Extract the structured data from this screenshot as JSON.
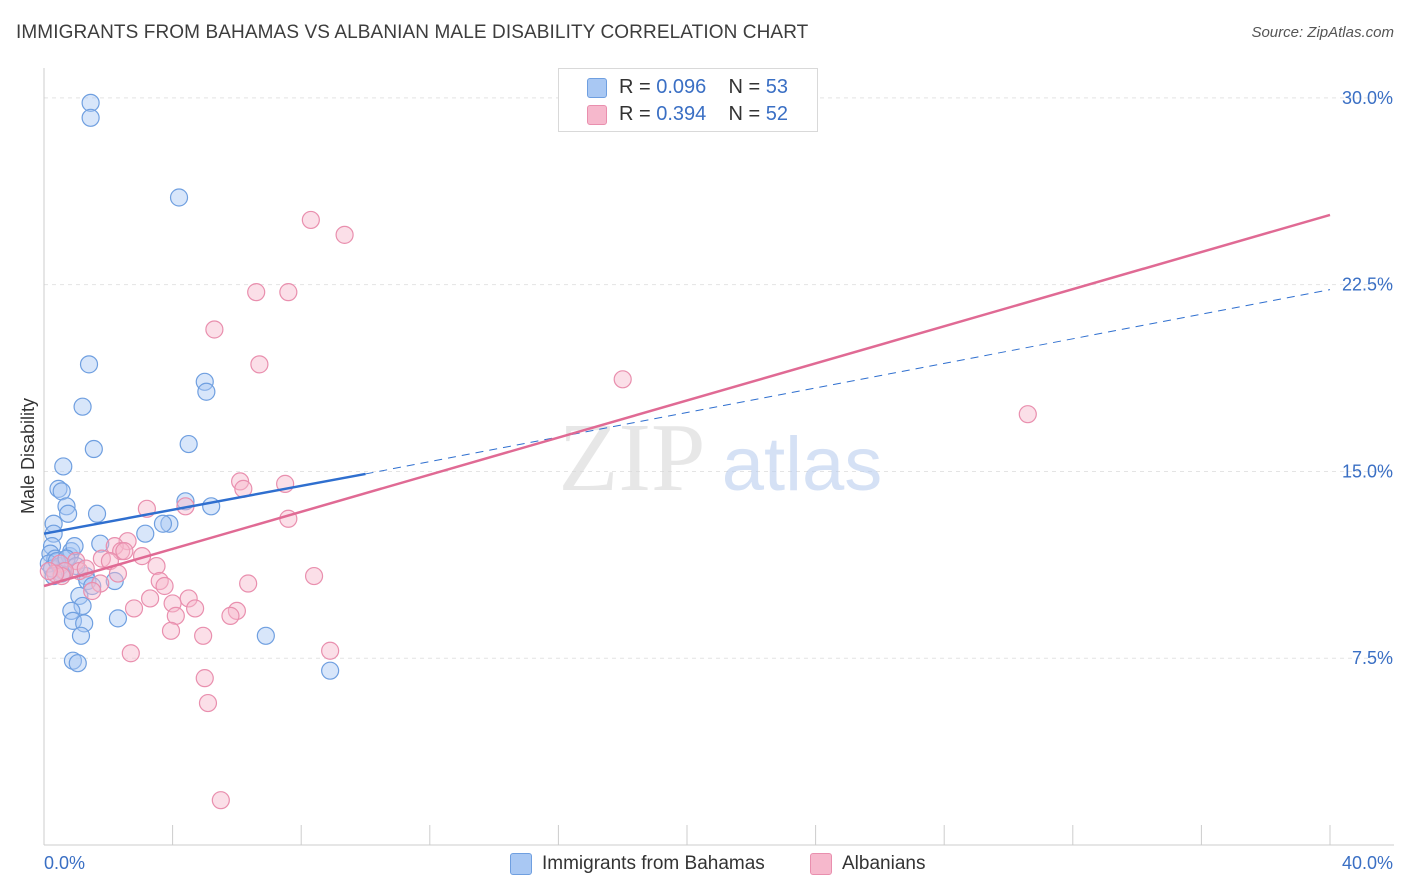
{
  "header": {
    "title": "IMMIGRANTS FROM BAHAMAS VS ALBANIAN MALE DISABILITY CORRELATION CHART",
    "source": "Source: ZipAtlas.com"
  },
  "watermark": {
    "zip": "ZIP",
    "atlas": "atlas"
  },
  "legend": {
    "series1": {
      "r_label": "R = ",
      "r_value": "0.096",
      "n_label": "N = ",
      "n_value": "53"
    },
    "series2": {
      "r_label": "R = ",
      "r_value": "0.394",
      "n_label": "N = ",
      "n_value": "52"
    }
  },
  "colors": {
    "blue_fill": "#a9c8f3",
    "blue_stroke": "#6f9fe0",
    "blue_line": "#2f6fcf",
    "pink_fill": "#f6b8cc",
    "pink_stroke": "#e98fae",
    "pink_line": "#e06a94",
    "axis_text": "#3a6fc4",
    "grid": "#e4e4e4"
  },
  "chart_data": {
    "type": "scatter",
    "title": "IMMIGRANTS FROM BAHAMAS VS ALBANIAN MALE DISABILITY CORRELATION CHART",
    "xlabel": "",
    "ylabel": "Male Disability",
    "xlim": [
      0,
      40
    ],
    "ylim": [
      0,
      31.2
    ],
    "x_ticks": [
      "0.0%",
      "40.0%"
    ],
    "y_ticks": [
      {
        "value": 7.5,
        "label": "7.5%"
      },
      {
        "value": 15.0,
        "label": "15.0%"
      },
      {
        "value": 22.5,
        "label": "22.5%"
      },
      {
        "value": 30.0,
        "label": "30.0%"
      }
    ],
    "series": [
      {
        "name": "Immigrants from Bahamas",
        "color": "blue",
        "points": [
          [
            1.45,
            29.8
          ],
          [
            1.45,
            29.2
          ],
          [
            4.2,
            26.0
          ],
          [
            1.4,
            19.3
          ],
          [
            5.0,
            18.6
          ],
          [
            5.05,
            18.2
          ],
          [
            1.2,
            17.6
          ],
          [
            1.55,
            15.9
          ],
          [
            4.5,
            16.1
          ],
          [
            0.6,
            15.2
          ],
          [
            0.45,
            14.3
          ],
          [
            0.55,
            14.2
          ],
          [
            0.7,
            13.6
          ],
          [
            0.75,
            13.3
          ],
          [
            1.65,
            13.3
          ],
          [
            4.4,
            13.8
          ],
          [
            5.2,
            13.6
          ],
          [
            3.9,
            12.9
          ],
          [
            3.7,
            12.9
          ],
          [
            3.15,
            12.5
          ],
          [
            0.3,
            12.9
          ],
          [
            0.3,
            12.5
          ],
          [
            0.25,
            12.0
          ],
          [
            0.2,
            11.7
          ],
          [
            0.35,
            11.5
          ],
          [
            0.15,
            11.3
          ],
          [
            0.25,
            11.1
          ],
          [
            0.5,
            11.2
          ],
          [
            0.8,
            11.6
          ],
          [
            0.85,
            11.8
          ],
          [
            0.95,
            12.0
          ],
          [
            1.75,
            12.1
          ],
          [
            0.6,
            11.0
          ],
          [
            1.3,
            10.8
          ],
          [
            1.35,
            10.6
          ],
          [
            1.5,
            10.4
          ],
          [
            1.1,
            10.0
          ],
          [
            1.2,
            9.6
          ],
          [
            0.85,
            9.4
          ],
          [
            0.9,
            9.0
          ],
          [
            1.25,
            8.9
          ],
          [
            2.3,
            9.1
          ],
          [
            1.15,
            8.4
          ],
          [
            0.9,
            7.4
          ],
          [
            1.05,
            7.3
          ],
          [
            6.9,
            8.4
          ],
          [
            8.9,
            7.0
          ],
          [
            2.2,
            10.6
          ],
          [
            0.55,
            10.9
          ],
          [
            0.4,
            11.4
          ],
          [
            0.7,
            11.5
          ],
          [
            1.0,
            11.2
          ],
          [
            0.3,
            10.8
          ]
        ]
      },
      {
        "name": "Albanians",
        "color": "pink",
        "points": [
          [
            8.3,
            25.1
          ],
          [
            9.35,
            24.5
          ],
          [
            6.6,
            22.2
          ],
          [
            7.6,
            22.2
          ],
          [
            5.3,
            20.7
          ],
          [
            6.7,
            19.3
          ],
          [
            18.0,
            18.7
          ],
          [
            30.6,
            17.3
          ],
          [
            6.1,
            14.6
          ],
          [
            7.5,
            14.5
          ],
          [
            6.2,
            14.3
          ],
          [
            3.2,
            13.5
          ],
          [
            4.4,
            13.6
          ],
          [
            7.6,
            13.1
          ],
          [
            2.6,
            12.2
          ],
          [
            2.2,
            12.0
          ],
          [
            2.4,
            11.8
          ],
          [
            2.5,
            11.8
          ],
          [
            3.05,
            11.6
          ],
          [
            1.8,
            11.5
          ],
          [
            2.05,
            11.4
          ],
          [
            1.0,
            11.4
          ],
          [
            1.1,
            11.0
          ],
          [
            0.5,
            11.3
          ],
          [
            0.65,
            11.0
          ],
          [
            0.55,
            10.8
          ],
          [
            0.35,
            10.9
          ],
          [
            1.75,
            10.5
          ],
          [
            3.5,
            11.2
          ],
          [
            3.6,
            10.6
          ],
          [
            3.75,
            10.4
          ],
          [
            6.35,
            10.5
          ],
          [
            8.4,
            10.8
          ],
          [
            2.3,
            10.9
          ],
          [
            1.5,
            10.2
          ],
          [
            3.3,
            9.9
          ],
          [
            4.5,
            9.9
          ],
          [
            4.0,
            9.7
          ],
          [
            2.8,
            9.5
          ],
          [
            4.7,
            9.5
          ],
          [
            6.0,
            9.4
          ],
          [
            5.8,
            9.2
          ],
          [
            4.1,
            9.2
          ],
          [
            3.95,
            8.6
          ],
          [
            4.95,
            8.4
          ],
          [
            2.7,
            7.7
          ],
          [
            8.9,
            7.8
          ],
          [
            5.0,
            6.7
          ],
          [
            5.1,
            5.7
          ],
          [
            5.5,
            1.8
          ],
          [
            0.15,
            11.0
          ],
          [
            1.3,
            11.1
          ]
        ]
      }
    ],
    "trend_lines": [
      {
        "series": "Immigrants from Bahamas",
        "style": "solid",
        "from": [
          0,
          12.5
        ],
        "to": [
          10.0,
          14.9
        ]
      },
      {
        "series": "Immigrants from Bahamas",
        "style": "dashed",
        "from": [
          10.0,
          14.9
        ],
        "to": [
          40.0,
          22.3
        ]
      },
      {
        "series": "Albanians",
        "style": "solid",
        "from": [
          0,
          10.4
        ],
        "to": [
          40.0,
          25.3
        ]
      }
    ]
  }
}
